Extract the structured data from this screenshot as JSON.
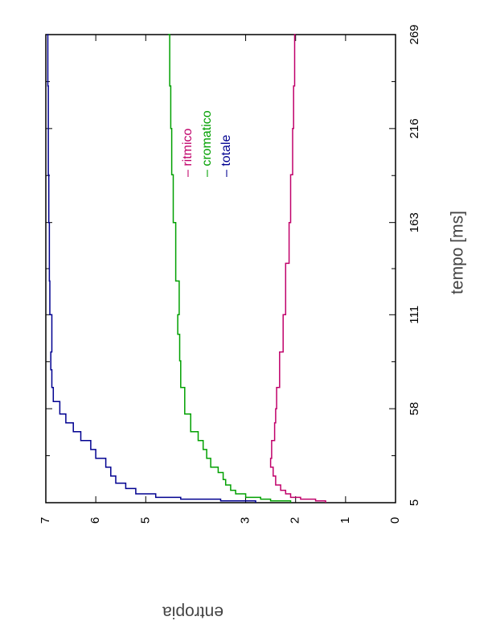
{
  "chart_data": {
    "type": "line",
    "orientation": "rotated 90 degrees counter-clockwise",
    "xlabel": "tempo [ms]",
    "ylabel": "entropia",
    "xlim": [
      5,
      269
    ],
    "ylim": [
      0,
      7
    ],
    "x_ticks": [
      "5",
      "58",
      "111",
      "163",
      "216",
      "269"
    ],
    "y_ticks": [
      "0",
      "1",
      "2",
      "3",
      "5",
      "6",
      "7"
    ],
    "y_tick_values": [
      0,
      1,
      2,
      3,
      5,
      6,
      7
    ],
    "legend_position": "top-right",
    "series": [
      {
        "name": "ritmico",
        "color": "#c0006a",
        "points": [
          [
            5,
            1.4
          ],
          [
            6,
            1.6
          ],
          [
            7,
            1.9
          ],
          [
            8,
            2.1
          ],
          [
            10,
            2.2
          ],
          [
            12,
            2.3
          ],
          [
            15,
            2.4
          ],
          [
            20,
            2.45
          ],
          [
            25,
            2.5
          ],
          [
            30,
            2.48
          ],
          [
            40,
            2.42
          ],
          [
            50,
            2.4
          ],
          [
            58,
            2.38
          ],
          [
            70,
            2.32
          ],
          [
            90,
            2.25
          ],
          [
            111,
            2.2
          ],
          [
            140,
            2.13
          ],
          [
            163,
            2.1
          ],
          [
            190,
            2.06
          ],
          [
            216,
            2.04
          ],
          [
            240,
            2.02
          ],
          [
            269,
            2.0
          ]
        ]
      },
      {
        "name": "cromatico",
        "color": "#00a000",
        "points": [
          [
            5,
            2.1
          ],
          [
            6,
            2.5
          ],
          [
            7,
            2.7
          ],
          [
            8,
            3.0
          ],
          [
            10,
            3.2
          ],
          [
            12,
            3.3
          ],
          [
            15,
            3.4
          ],
          [
            18,
            3.45
          ],
          [
            22,
            3.55
          ],
          [
            25,
            3.7
          ],
          [
            30,
            3.78
          ],
          [
            35,
            3.85
          ],
          [
            40,
            3.95
          ],
          [
            45,
            4.1
          ],
          [
            55,
            4.22
          ],
          [
            70,
            4.3
          ],
          [
            85,
            4.32
          ],
          [
            100,
            4.36
          ],
          [
            111,
            4.33
          ],
          [
            130,
            4.4
          ],
          [
            163,
            4.45
          ],
          [
            190,
            4.48
          ],
          [
            216,
            4.5
          ],
          [
            240,
            4.52
          ],
          [
            269,
            4.55
          ]
        ]
      },
      {
        "name": "totale",
        "color": "#000090",
        "points": [
          [
            5,
            2.8
          ],
          [
            6,
            3.5
          ],
          [
            7,
            4.3
          ],
          [
            8,
            4.8
          ],
          [
            10,
            5.2
          ],
          [
            13,
            5.4
          ],
          [
            16,
            5.6
          ],
          [
            20,
            5.7
          ],
          [
            25,
            5.8
          ],
          [
            30,
            6.0
          ],
          [
            35,
            6.1
          ],
          [
            40,
            6.3
          ],
          [
            45,
            6.45
          ],
          [
            50,
            6.6
          ],
          [
            55,
            6.72
          ],
          [
            62,
            6.85
          ],
          [
            70,
            6.88
          ],
          [
            80,
            6.9
          ],
          [
            90,
            6.88
          ],
          [
            111,
            6.92
          ],
          [
            130,
            6.93
          ],
          [
            163,
            6.94
          ],
          [
            190,
            6.95
          ],
          [
            216,
            6.95
          ],
          [
            240,
            6.96
          ],
          [
            269,
            6.97
          ]
        ]
      }
    ]
  }
}
